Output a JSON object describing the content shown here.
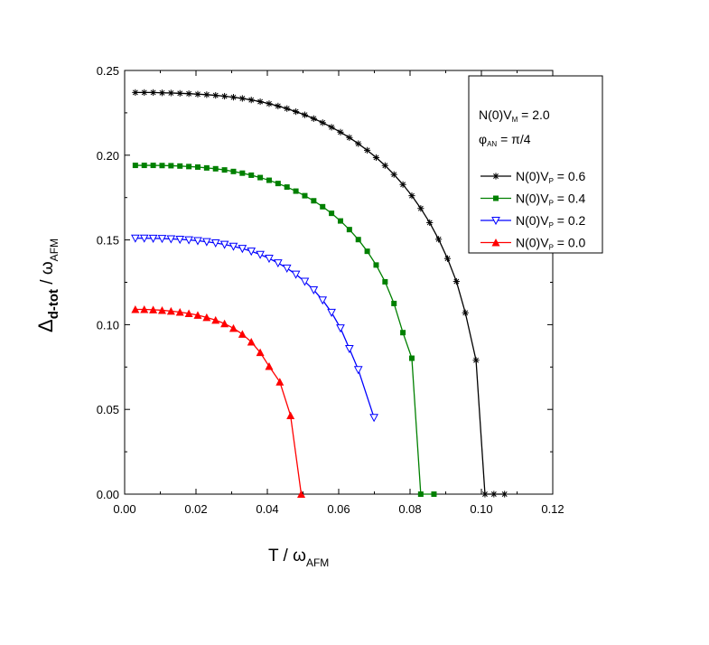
{
  "chart_data": {
    "type": "line",
    "title": "",
    "xlabel": {
      "main": "T / ω",
      "sub": "AFM"
    },
    "ylabel": {
      "main": "Δ",
      "sub1": "d-tot",
      "mid": " / ω",
      "sub2": "AFM"
    },
    "xlim": [
      0.0,
      0.12
    ],
    "ylim": [
      0.0,
      0.25
    ],
    "xticks": [
      {
        "v": 0.0,
        "label": "0.00"
      },
      {
        "v": 0.02,
        "label": "0.02"
      },
      {
        "v": 0.04,
        "label": "0.04"
      },
      {
        "v": 0.06,
        "label": "0.06"
      },
      {
        "v": 0.08,
        "label": "0.08"
      },
      {
        "v": 0.1,
        "label": "0.10"
      },
      {
        "v": 0.12,
        "label": "0.12"
      }
    ],
    "yticks": [
      {
        "v": 0.0,
        "label": "0.00"
      },
      {
        "v": 0.05,
        "label": "0.05"
      },
      {
        "v": 0.1,
        "label": "0.10"
      },
      {
        "v": 0.15,
        "label": "0.15"
      },
      {
        "v": 0.2,
        "label": "0.20"
      },
      {
        "v": 0.25,
        "label": "0.25"
      }
    ],
    "grid": false,
    "legend_position": "top-right",
    "legend_header": [
      {
        "pre": "N(0)V",
        "sub": "M",
        "post": " = 2.0"
      },
      {
        "pre": "φ",
        "sub": "AN",
        "post": " =  π/4"
      }
    ],
    "series": [
      {
        "name": {
          "pre": "N(0)V",
          "sub": "P",
          "post": " = 0.6"
        },
        "color": "#000000",
        "marker": "asterisk",
        "x": [
          0.003,
          0.0055,
          0.008,
          0.0105,
          0.013,
          0.0155,
          0.018,
          0.0205,
          0.023,
          0.0255,
          0.028,
          0.0305,
          0.033,
          0.0355,
          0.038,
          0.0405,
          0.043,
          0.0455,
          0.048,
          0.0505,
          0.053,
          0.0555,
          0.058,
          0.0605,
          0.063,
          0.0655,
          0.068,
          0.0705,
          0.073,
          0.0755,
          0.078,
          0.0805,
          0.083,
          0.0855,
          0.088,
          0.0905,
          0.093,
          0.0955,
          0.0985,
          0.101,
          0.1035,
          0.1065
        ],
        "y": [
          0.237,
          0.237,
          0.237,
          0.2368,
          0.2367,
          0.2365,
          0.2363,
          0.236,
          0.2357,
          0.2353,
          0.2348,
          0.2342,
          0.2335,
          0.2326,
          0.2316,
          0.2304,
          0.229,
          0.2275,
          0.2257,
          0.2238,
          0.2216,
          0.2192,
          0.2165,
          0.2136,
          0.2104,
          0.2068,
          0.2029,
          0.1986,
          0.1939,
          0.1886,
          0.1827,
          0.1761,
          0.1686,
          0.1602,
          0.1504,
          0.139,
          0.1255,
          0.107,
          0.079,
          0.0,
          0.0,
          0.0
        ]
      },
      {
        "name": {
          "pre": "N(0)V",
          "sub": "P",
          "post": " = 0.4"
        },
        "color": "#008000",
        "marker": "square",
        "x": [
          0.003,
          0.0055,
          0.008,
          0.0105,
          0.013,
          0.0155,
          0.018,
          0.0205,
          0.023,
          0.0255,
          0.028,
          0.0305,
          0.033,
          0.0355,
          0.038,
          0.0405,
          0.043,
          0.0455,
          0.048,
          0.0505,
          0.053,
          0.0555,
          0.058,
          0.0605,
          0.063,
          0.0655,
          0.068,
          0.0705,
          0.073,
          0.0755,
          0.078,
          0.0805,
          0.083,
          0.0867
        ],
        "y": [
          0.194,
          0.194,
          0.194,
          0.1939,
          0.1938,
          0.1936,
          0.1933,
          0.193,
          0.1925,
          0.192,
          0.1913,
          0.1904,
          0.1894,
          0.1882,
          0.1868,
          0.1852,
          0.1833,
          0.1812,
          0.1788,
          0.1761,
          0.1731,
          0.1696,
          0.1657,
          0.1612,
          0.1561,
          0.1502,
          0.1433,
          0.1352,
          0.1253,
          0.1125,
          0.0953,
          0.0802,
          0.0,
          0.0
        ]
      },
      {
        "name": {
          "pre": "N(0)V",
          "sub": "P",
          "post": " = 0.2"
        },
        "color": "#0000ff",
        "marker": "triangle-down-open",
        "x": [
          0.003,
          0.0055,
          0.008,
          0.0105,
          0.013,
          0.0155,
          0.018,
          0.0205,
          0.023,
          0.0255,
          0.028,
          0.0305,
          0.033,
          0.0355,
          0.038,
          0.0405,
          0.043,
          0.0455,
          0.048,
          0.0505,
          0.053,
          0.0555,
          0.058,
          0.0605,
          0.063,
          0.0655,
          0.0699
        ],
        "y": [
          0.151,
          0.151,
          0.1509,
          0.1508,
          0.1506,
          0.1503,
          0.15,
          0.1495,
          0.1489,
          0.1482,
          0.1473,
          0.1462,
          0.1449,
          0.1433,
          0.1414,
          0.1391,
          0.1364,
          0.1333,
          0.1297,
          0.1255,
          0.1205,
          0.1145,
          0.1072,
          0.098,
          0.0858,
          0.0734,
          0.0452
        ]
      },
      {
        "name": {
          "pre": "N(0)V",
          "sub": "P",
          "post": " = 0.0"
        },
        "color": "#ff0000",
        "marker": "triangle-up",
        "x": [
          0.003,
          0.0055,
          0.008,
          0.0105,
          0.013,
          0.0155,
          0.018,
          0.0205,
          0.023,
          0.0255,
          0.028,
          0.0305,
          0.033,
          0.0355,
          0.038,
          0.0405,
          0.0435,
          0.0465,
          0.0495
        ],
        "y": [
          0.109,
          0.109,
          0.1088,
          0.1085,
          0.108,
          0.1074,
          0.1066,
          0.1056,
          0.1043,
          0.1027,
          0.1006,
          0.0979,
          0.0944,
          0.0898,
          0.0836,
          0.0754,
          0.0662,
          0.0464,
          0.0
        ]
      }
    ]
  }
}
